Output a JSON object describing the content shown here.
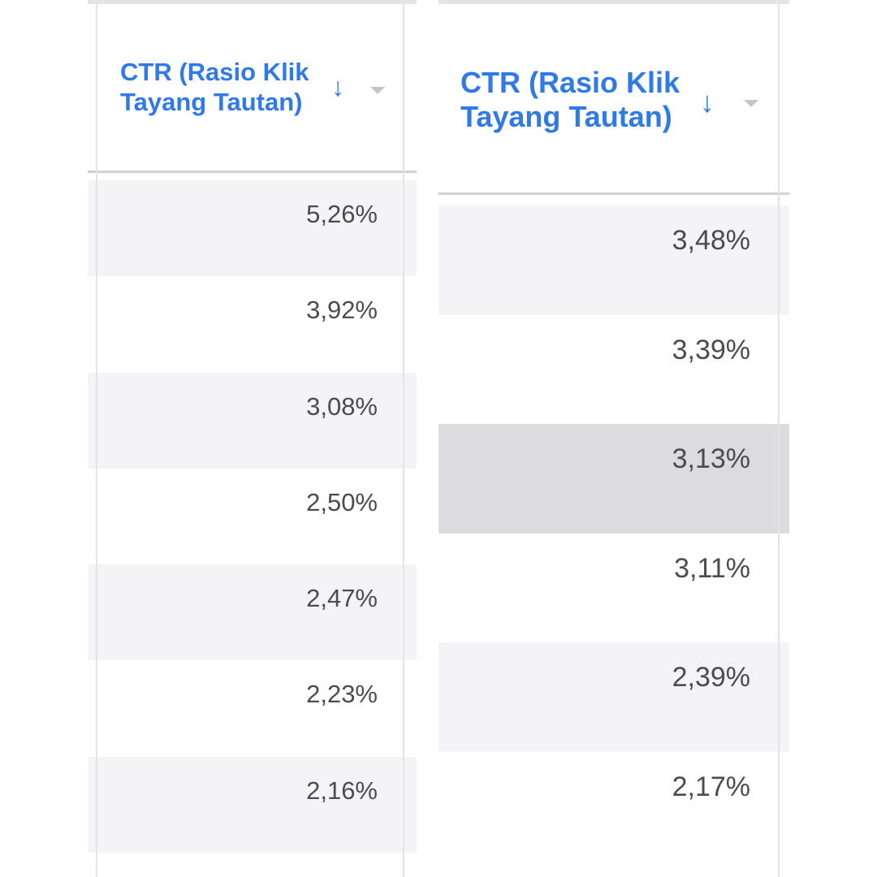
{
  "left_table": {
    "header": {
      "title_line1": "CTR (Rasio Klik",
      "title_line2": "Tayang Tautan)",
      "sort_icon": "arrow-down-icon",
      "menu_icon": "caret-down-icon"
    },
    "rows": [
      {
        "value": "5,26%",
        "shade": "light"
      },
      {
        "value": "3,92%",
        "shade": "white"
      },
      {
        "value": "3,08%",
        "shade": "light"
      },
      {
        "value": "2,50%",
        "shade": "white"
      },
      {
        "value": "2,47%",
        "shade": "light"
      },
      {
        "value": "2,23%",
        "shade": "white"
      },
      {
        "value": "2,16%",
        "shade": "light"
      }
    ]
  },
  "right_table": {
    "header": {
      "title_line1": "CTR (Rasio Klik",
      "title_line2": "Tayang Tautan)",
      "sort_icon": "arrow-down-icon",
      "menu_icon": "caret-down-icon"
    },
    "rows": [
      {
        "value": "3,48%",
        "shade": "light"
      },
      {
        "value": "3,39%",
        "shade": "white"
      },
      {
        "value": "3,13%",
        "shade": "selected"
      },
      {
        "value": "3,11%",
        "shade": "white"
      },
      {
        "value": "2,39%",
        "shade": "light"
      },
      {
        "value": "2,17%",
        "shade": "white"
      }
    ]
  },
  "colors": {
    "header_text": "#2f7ae6",
    "cell_text": "#4a4c50",
    "row_light": "#f4f4f7",
    "row_selected": "#dcdcdf"
  }
}
